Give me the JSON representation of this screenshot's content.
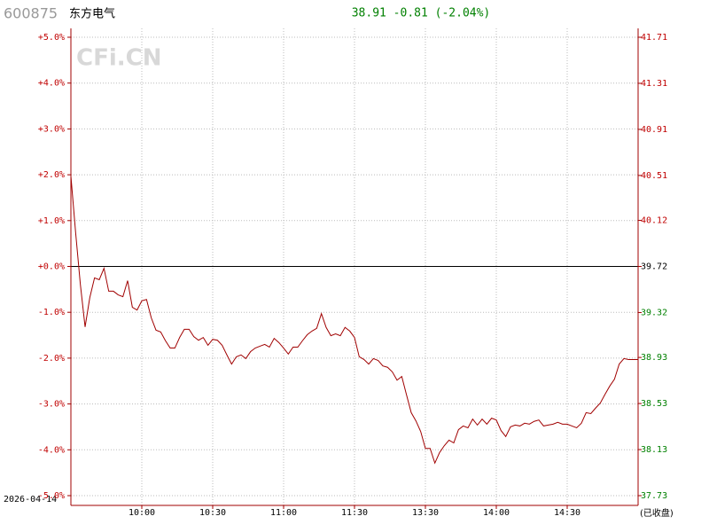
{
  "chart_data": {
    "type": "line",
    "symbol": "600875",
    "name": "东方电气",
    "quote": "38.91 -0.81 (-2.04%)",
    "date": "2026-04-14",
    "status": "(已收盘)",
    "watermark": "CFi.CN",
    "xlim": [
      0,
      240
    ],
    "xticks": [
      {
        "value": 30,
        "label": "10:00"
      },
      {
        "value": 60,
        "label": "10:30"
      },
      {
        "value": 90,
        "label": "11:00"
      },
      {
        "value": 120,
        "label": "11:30"
      },
      {
        "value": 150,
        "label": "13:30"
      },
      {
        "value": 180,
        "label": "14:00"
      },
      {
        "value": 210,
        "label": "14:30"
      }
    ],
    "ylim": [
      -5,
      5
    ],
    "yticks": [
      {
        "value": 5,
        "label": "+5.0%"
      },
      {
        "value": 4,
        "label": "+4.0%"
      },
      {
        "value": 3,
        "label": "+3.0%"
      },
      {
        "value": 2,
        "label": "+2.0%"
      },
      {
        "value": 1,
        "label": "+1.0%"
      },
      {
        "value": 0,
        "label": "+0.0%"
      },
      {
        "value": -1,
        "label": "-1.0%"
      },
      {
        "value": -2,
        "label": "-2.0%"
      },
      {
        "value": -3,
        "label": "-3.0%"
      },
      {
        "value": -4,
        "label": "-4.0%"
      },
      {
        "value": -5,
        "label": "-5.0%"
      }
    ],
    "y2lim": [
      37.73,
      41.71
    ],
    "y2ticks": [
      41.71,
      41.31,
      40.91,
      40.51,
      40.12,
      39.72,
      39.32,
      38.93,
      38.53,
      38.13,
      37.73
    ],
    "grid": true,
    "up_color": "#c00000",
    "down_color": "#008000",
    "series": [
      {
        "name": "东方电气",
        "color": "#a00000",
        "x": [
          0,
          2,
          4,
          6,
          8,
          10,
          12,
          14,
          16,
          18,
          20,
          22,
          24,
          26,
          28,
          30,
          32,
          34,
          36,
          38,
          40,
          42,
          44,
          46,
          48,
          50,
          52,
          54,
          56,
          58,
          60,
          62,
          64,
          66,
          68,
          70,
          72,
          74,
          76,
          78,
          80,
          82,
          84,
          86,
          88,
          90,
          92,
          94,
          96,
          98,
          100,
          102,
          104,
          106,
          108,
          110,
          112,
          114,
          116,
          118,
          120,
          122,
          124,
          126,
          128,
          130,
          132,
          134,
          136,
          138,
          140,
          142,
          144,
          146,
          148,
          150,
          152,
          154,
          156,
          158,
          160,
          162,
          164,
          166,
          168,
          170,
          172,
          174,
          176,
          178,
          180,
          182,
          184,
          186,
          188,
          190,
          192,
          194,
          196,
          198,
          200,
          202,
          204,
          206,
          208,
          210,
          212,
          214,
          216,
          218,
          220,
          222,
          224,
          226,
          228,
          230,
          232,
          234,
          236,
          238,
          240
        ],
        "values": [
          1.97,
          0.74,
          -0.39,
          -1.32,
          -0.68,
          -0.25,
          -0.29,
          -0.04,
          -0.54,
          -0.54,
          -0.62,
          -0.66,
          -0.31,
          -0.89,
          -0.95,
          -0.75,
          -0.72,
          -1.12,
          -1.39,
          -1.43,
          -1.62,
          -1.78,
          -1.78,
          -1.55,
          -1.37,
          -1.37,
          -1.53,
          -1.61,
          -1.55,
          -1.72,
          -1.59,
          -1.61,
          -1.72,
          -1.93,
          -2.13,
          -1.97,
          -1.93,
          -2.01,
          -1.86,
          -1.78,
          -1.74,
          -1.7,
          -1.76,
          -1.57,
          -1.66,
          -1.78,
          -1.91,
          -1.76,
          -1.76,
          -1.62,
          -1.49,
          -1.41,
          -1.35,
          -1.03,
          -1.33,
          -1.51,
          -1.47,
          -1.51,
          -1.33,
          -1.41,
          -1.55,
          -1.97,
          -2.03,
          -2.13,
          -2.01,
          -2.05,
          -2.17,
          -2.2,
          -2.3,
          -2.48,
          -2.4,
          -2.8,
          -3.19,
          -3.37,
          -3.6,
          -3.97,
          -3.97,
          -4.29,
          -4.06,
          -3.91,
          -3.79,
          -3.85,
          -3.56,
          -3.48,
          -3.52,
          -3.33,
          -3.46,
          -3.33,
          -3.44,
          -3.31,
          -3.35,
          -3.58,
          -3.71,
          -3.5,
          -3.46,
          -3.48,
          -3.42,
          -3.44,
          -3.38,
          -3.35,
          -3.48,
          -3.46,
          -3.44,
          -3.4,
          -3.44,
          -3.44,
          -3.48,
          -3.52,
          -3.42,
          -3.19,
          -3.21,
          -3.09,
          -2.98,
          -2.79,
          -2.61,
          -2.46,
          -2.13,
          -2.01,
          -2.03,
          -2.03,
          -2.03
        ]
      }
    ]
  }
}
